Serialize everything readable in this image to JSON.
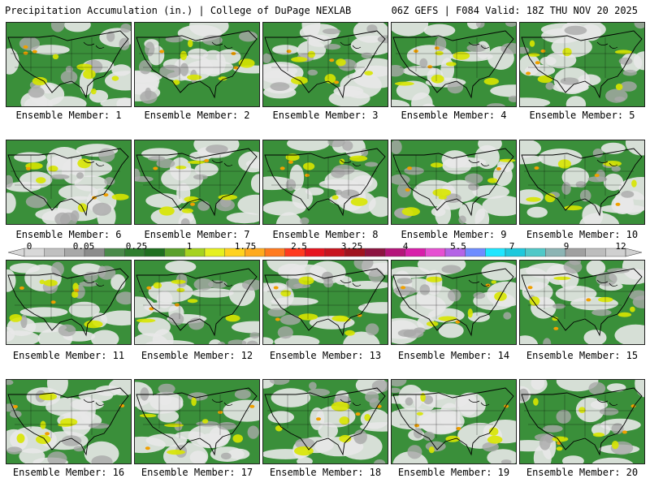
{
  "header": {
    "title_left": "Precipitation Accumulation (in.) | College of DuPage NEXLAB",
    "title_right": "06Z GEFS | F084 Valid: 18Z THU NOV 20 2025"
  },
  "panels": [
    {
      "label": "Ensemble Member: 1"
    },
    {
      "label": "Ensemble Member: 2"
    },
    {
      "label": "Ensemble Member: 3"
    },
    {
      "label": "Ensemble Member: 4"
    },
    {
      "label": "Ensemble Member: 5"
    },
    {
      "label": "Ensemble Member: 6"
    },
    {
      "label": "Ensemble Member: 7"
    },
    {
      "label": "Ensemble Member: 8"
    },
    {
      "label": "Ensemble Member: 9"
    },
    {
      "label": "Ensemble Member: 10"
    },
    {
      "label": "Ensemble Member: 11"
    },
    {
      "label": "Ensemble Member: 12"
    },
    {
      "label": "Ensemble Member: 13"
    },
    {
      "label": "Ensemble Member: 14"
    },
    {
      "label": "Ensemble Member: 15"
    },
    {
      "label": "Ensemble Member: 16"
    },
    {
      "label": "Ensemble Member: 17"
    },
    {
      "label": "Ensemble Member: 18"
    },
    {
      "label": "Ensemble Member: 19"
    },
    {
      "label": "Ensemble Member: 20"
    }
  ],
  "colorbar": {
    "tick_labels": [
      "0",
      "0.05",
      "0.25",
      "1",
      "1.75",
      "2.5",
      "3.25",
      "4",
      "5.5",
      "7",
      "9",
      "12"
    ],
    "colors": [
      "#d8d8d8",
      "#c0c0c0",
      "#a8a8a8",
      "#8c8c8c",
      "#4a8a4a",
      "#2e7d2e",
      "#1f6f1f",
      "#5aa02a",
      "#a6d21e",
      "#e6f01e",
      "#ffd21e",
      "#ffaa1e",
      "#ff7a1e",
      "#ff3a1e",
      "#e6141e",
      "#c8141e",
      "#a0141e",
      "#8c1440",
      "#b4147a",
      "#d81eaa",
      "#e650d2",
      "#b464e6",
      "#6e8cff",
      "#1ee6ff",
      "#1ec8dc",
      "#50c8c8",
      "#8cb4b4",
      "#a0a0a0",
      "#bdbdbd",
      "#d0d0d0"
    ],
    "map_colors": {
      "land": "#3a8f3a",
      "light": "#e8e8e8",
      "grey": "#a9a9a9",
      "yellow": "#d8e600",
      "orange": "#f0a000",
      "red": "#e02020",
      "border": "#000000"
    }
  }
}
